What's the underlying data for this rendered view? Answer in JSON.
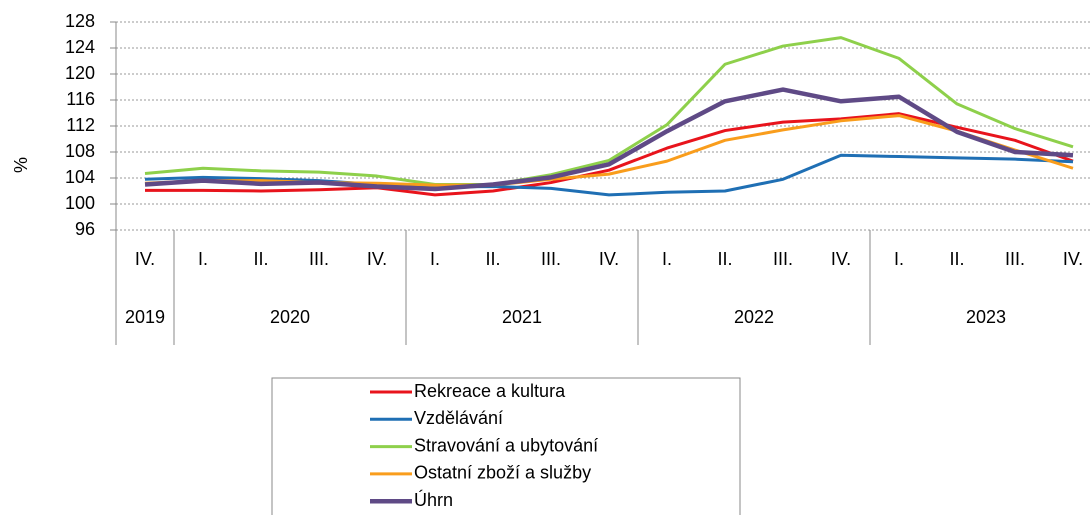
{
  "chart_data": {
    "type": "line",
    "y_label": "%",
    "categories": [
      "IV.",
      "I.",
      "II.",
      "III.",
      "IV.",
      "I.",
      "II.",
      "III.",
      "IV.",
      "I.",
      "II.",
      "III.",
      "IV.",
      "I.",
      "II.",
      "III.",
      "IV."
    ],
    "year_groups": [
      {
        "label": "2019",
        "count": 1
      },
      {
        "label": "2020",
        "count": 4
      },
      {
        "label": "2021",
        "count": 4
      },
      {
        "label": "2022",
        "count": 4
      },
      {
        "label": "2023",
        "count": 4
      }
    ],
    "ylim": [
      96,
      128
    ],
    "yticks": [
      96,
      100,
      104,
      108,
      112,
      116,
      120,
      124,
      128
    ],
    "grid": true,
    "series": [
      {
        "name": "Rekreace a kultura",
        "color": "#e8141c",
        "values": [
          102.1,
          102.1,
          102.0,
          102.2,
          102.5,
          101.4,
          102.0,
          103.3,
          105.2,
          108.6,
          111.3,
          112.6,
          113.1,
          113.9,
          111.8,
          109.8,
          106.6
        ]
      },
      {
        "name": "Vzdělávání",
        "color": "#1f6fb4",
        "values": [
          103.8,
          104.1,
          103.9,
          103.6,
          103.0,
          102.6,
          102.7,
          102.4,
          101.4,
          101.8,
          102.0,
          103.8,
          107.5,
          107.3,
          107.1,
          106.9,
          106.5
        ]
      },
      {
        "name": "Stravování a ubytování",
        "color": "#8ed04b",
        "values": [
          104.7,
          105.5,
          105.1,
          104.9,
          104.3,
          103.0,
          103.0,
          104.5,
          106.7,
          112.2,
          121.5,
          124.3,
          125.6,
          122.4,
          115.4,
          111.6,
          108.8
        ]
      },
      {
        "name": "Ostatní zboží a služby",
        "color": "#f99d1c",
        "values": [
          103.2,
          103.6,
          103.6,
          103.3,
          103.2,
          102.9,
          102.9,
          103.8,
          104.6,
          106.6,
          109.8,
          111.4,
          112.8,
          113.6,
          111.2,
          108.3,
          105.5
        ]
      },
      {
        "name": "Úhrn",
        "color": "#5f4a86",
        "values": [
          103.0,
          103.6,
          103.1,
          103.3,
          102.7,
          102.3,
          103.0,
          104.1,
          106.1,
          111.2,
          115.8,
          117.6,
          115.8,
          116.5,
          111.1,
          108.0,
          107.5
        ]
      }
    ]
  }
}
